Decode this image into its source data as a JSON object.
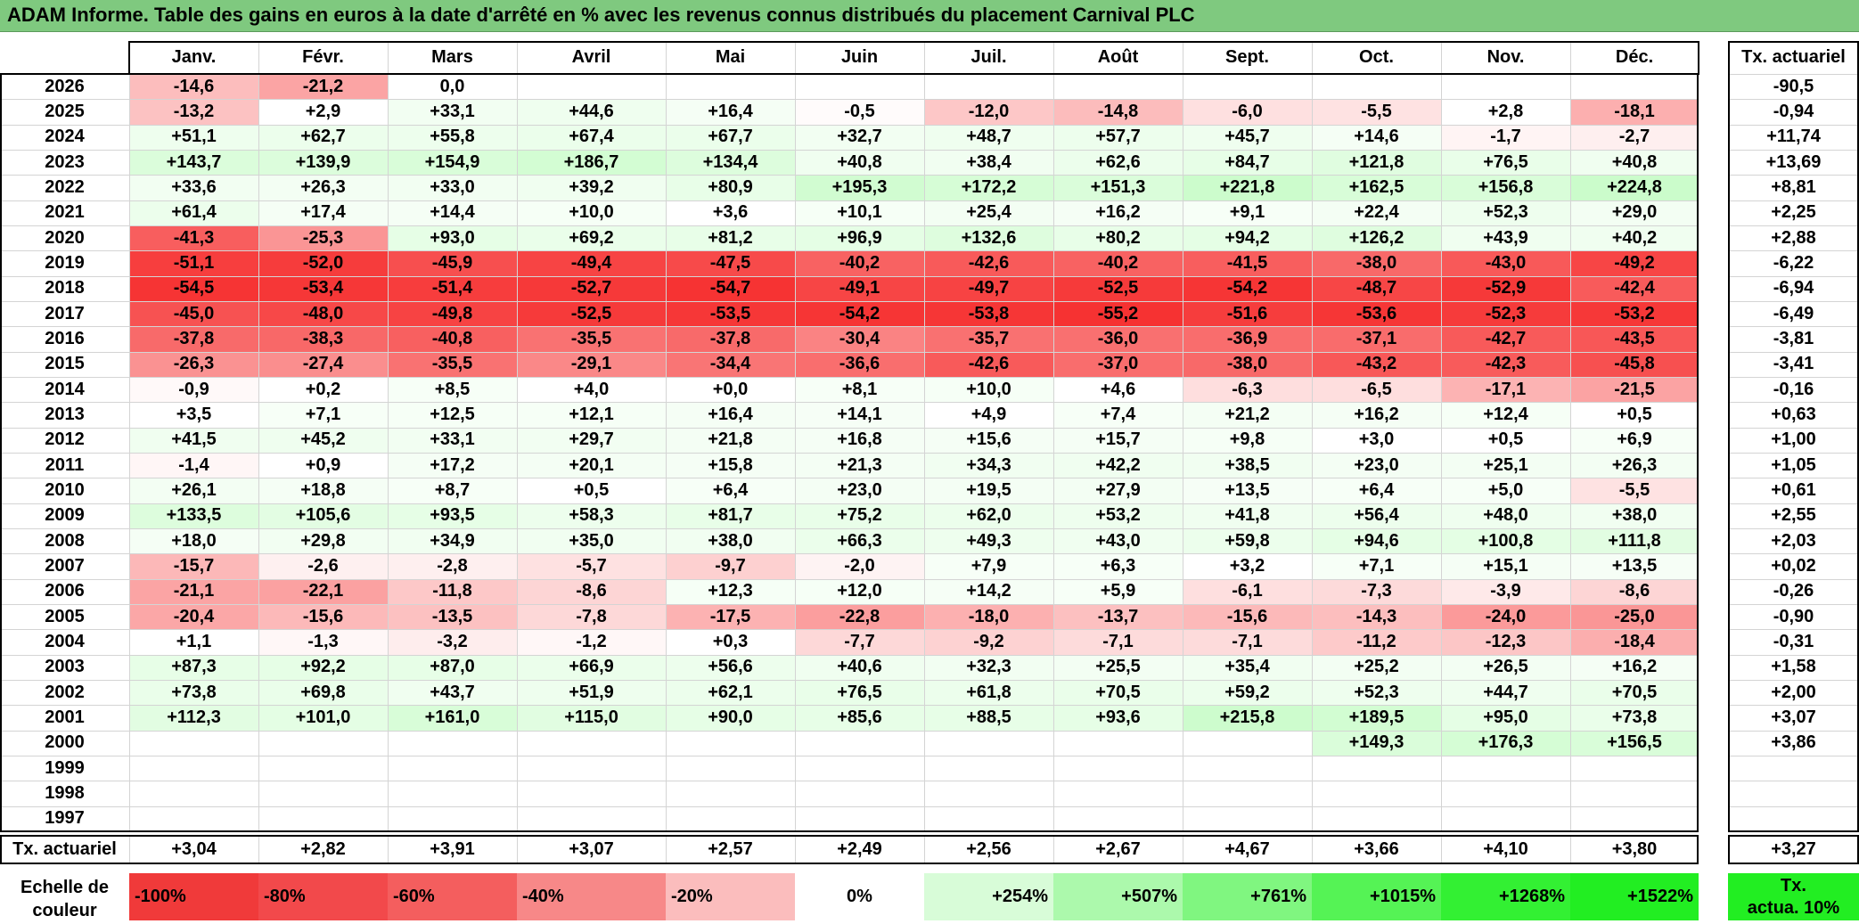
{
  "title": "ADAM Informe. Table des gains en euros à la date d'arrêté en % avec les revenus connus distribués du placement Carnival PLC",
  "months": [
    "Janv.",
    "Févr.",
    "Mars",
    "Avril",
    "Mai",
    "Juin",
    "Juil.",
    "Août",
    "Sept.",
    "Oct.",
    "Nov.",
    "Déc."
  ],
  "rate_header": "Tx. actuariel",
  "rows": [
    {
      "year": "2026",
      "values": [
        "-14,6",
        "-21,2",
        "0,0",
        "",
        "",
        "",
        "",
        "",
        "",
        "",
        "",
        ""
      ],
      "rate": "-90,5"
    },
    {
      "year": "2025",
      "values": [
        "-13,2",
        "+2,9",
        "+33,1",
        "+44,6",
        "+16,4",
        "-0,5",
        "-12,0",
        "-14,8",
        "-6,0",
        "-5,5",
        "+2,8",
        "-18,1"
      ],
      "rate": "-0,94"
    },
    {
      "year": "2024",
      "values": [
        "+51,1",
        "+62,7",
        "+55,8",
        "+67,4",
        "+67,7",
        "+32,7",
        "+48,7",
        "+57,7",
        "+45,7",
        "+14,6",
        "-1,7",
        "-2,7"
      ],
      "rate": "+11,74"
    },
    {
      "year": "2023",
      "values": [
        "+143,7",
        "+139,9",
        "+154,9",
        "+186,7",
        "+134,4",
        "+40,8",
        "+38,4",
        "+62,6",
        "+84,7",
        "+121,8",
        "+76,5",
        "+40,8"
      ],
      "rate": "+13,69"
    },
    {
      "year": "2022",
      "values": [
        "+33,6",
        "+26,3",
        "+33,0",
        "+39,2",
        "+80,9",
        "+195,3",
        "+172,2",
        "+151,3",
        "+221,8",
        "+162,5",
        "+156,8",
        "+224,8"
      ],
      "rate": "+8,81"
    },
    {
      "year": "2021",
      "values": [
        "+61,4",
        "+17,4",
        "+14,4",
        "+10,0",
        "+3,6",
        "+10,1",
        "+25,4",
        "+16,2",
        "+9,1",
        "+22,4",
        "+52,3",
        "+29,0"
      ],
      "rate": "+2,25"
    },
    {
      "year": "2020",
      "values": [
        "-41,3",
        "-25,3",
        "+93,0",
        "+69,2",
        "+81,2",
        "+96,9",
        "+132,6",
        "+80,2",
        "+94,2",
        "+126,2",
        "+43,9",
        "+40,2"
      ],
      "rate": "+2,88"
    },
    {
      "year": "2019",
      "values": [
        "-51,1",
        "-52,0",
        "-45,9",
        "-49,4",
        "-47,5",
        "-40,2",
        "-42,6",
        "-40,2",
        "-41,5",
        "-38,0",
        "-43,0",
        "-49,2"
      ],
      "rate": "-6,22"
    },
    {
      "year": "2018",
      "values": [
        "-54,5",
        "-53,4",
        "-51,4",
        "-52,7",
        "-54,7",
        "-49,1",
        "-49,7",
        "-52,5",
        "-54,2",
        "-48,7",
        "-52,9",
        "-42,4"
      ],
      "rate": "-6,94"
    },
    {
      "year": "2017",
      "values": [
        "-45,0",
        "-48,0",
        "-49,8",
        "-52,5",
        "-53,5",
        "-54,2",
        "-53,8",
        "-55,2",
        "-51,6",
        "-53,6",
        "-52,3",
        "-53,2"
      ],
      "rate": "-6,49"
    },
    {
      "year": "2016",
      "values": [
        "-37,8",
        "-38,3",
        "-40,8",
        "-35,5",
        "-37,8",
        "-30,4",
        "-35,7",
        "-36,0",
        "-36,9",
        "-37,1",
        "-42,7",
        "-43,5"
      ],
      "rate": "-3,81"
    },
    {
      "year": "2015",
      "values": [
        "-26,3",
        "-27,4",
        "-35,5",
        "-29,1",
        "-34,4",
        "-36,6",
        "-42,6",
        "-37,0",
        "-38,0",
        "-43,2",
        "-42,3",
        "-45,8"
      ],
      "rate": "-3,41"
    },
    {
      "year": "2014",
      "values": [
        "-0,9",
        "+0,2",
        "+8,5",
        "+4,0",
        "+0,0",
        "+8,1",
        "+10,0",
        "+4,6",
        "-6,3",
        "-6,5",
        "-17,1",
        "-21,5"
      ],
      "rate": "-0,16"
    },
    {
      "year": "2013",
      "values": [
        "+3,5",
        "+7,1",
        "+12,5",
        "+12,1",
        "+16,4",
        "+14,1",
        "+4,9",
        "+7,4",
        "+21,2",
        "+16,2",
        "+12,4",
        "+0,5"
      ],
      "rate": "+0,63"
    },
    {
      "year": "2012",
      "values": [
        "+41,5",
        "+45,2",
        "+33,1",
        "+29,7",
        "+21,8",
        "+16,8",
        "+15,6",
        "+15,7",
        "+9,8",
        "+3,0",
        "+0,5",
        "+6,9"
      ],
      "rate": "+1,00"
    },
    {
      "year": "2011",
      "values": [
        "-1,4",
        "+0,9",
        "+17,2",
        "+20,1",
        "+15,8",
        "+21,3",
        "+34,3",
        "+42,2",
        "+38,5",
        "+23,0",
        "+25,1",
        "+26,3"
      ],
      "rate": "+1,05"
    },
    {
      "year": "2010",
      "values": [
        "+26,1",
        "+18,8",
        "+8,7",
        "+0,5",
        "+6,4",
        "+23,0",
        "+19,5",
        "+27,9",
        "+13,5",
        "+6,4",
        "+5,0",
        "-5,5"
      ],
      "rate": "+0,61"
    },
    {
      "year": "2009",
      "values": [
        "+133,5",
        "+105,6",
        "+93,5",
        "+58,3",
        "+81,7",
        "+75,2",
        "+62,0",
        "+53,2",
        "+41,8",
        "+56,4",
        "+48,0",
        "+38,0"
      ],
      "rate": "+2,55"
    },
    {
      "year": "2008",
      "values": [
        "+18,0",
        "+29,8",
        "+34,9",
        "+35,0",
        "+38,0",
        "+66,3",
        "+49,3",
        "+43,0",
        "+59,8",
        "+94,6",
        "+100,8",
        "+111,8"
      ],
      "rate": "+2,03"
    },
    {
      "year": "2007",
      "values": [
        "-15,7",
        "-2,6",
        "-2,8",
        "-5,7",
        "-9,7",
        "-2,0",
        "+7,9",
        "+6,3",
        "+3,2",
        "+7,1",
        "+15,1",
        "+13,5"
      ],
      "rate": "+0,02"
    },
    {
      "year": "2006",
      "values": [
        "-21,1",
        "-22,1",
        "-11,8",
        "-8,6",
        "+12,3",
        "+12,0",
        "+14,2",
        "+5,9",
        "-6,1",
        "-7,3",
        "-3,9",
        "-8,6"
      ],
      "rate": "-0,26"
    },
    {
      "year": "2005",
      "values": [
        "-20,4",
        "-15,6",
        "-13,5",
        "-7,8",
        "-17,5",
        "-22,8",
        "-18,0",
        "-13,7",
        "-15,6",
        "-14,3",
        "-24,0",
        "-25,0"
      ],
      "rate": "-0,90"
    },
    {
      "year": "2004",
      "values": [
        "+1,1",
        "-1,3",
        "-3,2",
        "-1,2",
        "+0,3",
        "-7,7",
        "-9,2",
        "-7,1",
        "-7,1",
        "-11,2",
        "-12,3",
        "-18,4"
      ],
      "rate": "-0,31"
    },
    {
      "year": "2003",
      "values": [
        "+87,3",
        "+92,2",
        "+87,0",
        "+66,9",
        "+56,6",
        "+40,6",
        "+32,3",
        "+25,5",
        "+35,4",
        "+25,2",
        "+26,5",
        "+16,2"
      ],
      "rate": "+1,58"
    },
    {
      "year": "2002",
      "values": [
        "+73,8",
        "+69,8",
        "+43,7",
        "+51,9",
        "+62,1",
        "+76,5",
        "+61,8",
        "+70,5",
        "+59,2",
        "+52,3",
        "+44,7",
        "+70,5"
      ],
      "rate": "+2,00"
    },
    {
      "year": "2001",
      "values": [
        "+112,3",
        "+101,0",
        "+161,0",
        "+115,0",
        "+90,0",
        "+85,6",
        "+88,5",
        "+93,6",
        "+215,8",
        "+189,5",
        "+95,0",
        "+73,8"
      ],
      "rate": "+3,07"
    },
    {
      "year": "2000",
      "values": [
        "",
        "",
        "",
        "",
        "",
        "",
        "",
        "",
        "",
        "+149,3",
        "+176,3",
        "+156,5"
      ],
      "rate": "+3,86"
    },
    {
      "year": "1999",
      "values": [
        "",
        "",
        "",
        "",
        "",
        "",
        "",
        "",
        "",
        "",
        "",
        ""
      ],
      "rate": ""
    },
    {
      "year": "1998",
      "values": [
        "",
        "",
        "",
        "",
        "",
        "",
        "",
        "",
        "",
        "",
        "",
        ""
      ],
      "rate": ""
    },
    {
      "year": "1997",
      "values": [
        "",
        "",
        "",
        "",
        "",
        "",
        "",
        "",
        "",
        "",
        "",
        ""
      ],
      "rate": ""
    }
  ],
  "summary": {
    "label": "Tx. actuariel",
    "values": [
      "+3,04",
      "+2,82",
      "+3,91",
      "+3,07",
      "+2,57",
      "+2,49",
      "+2,56",
      "+2,67",
      "+4,67",
      "+3,66",
      "+4,10",
      "+3,80"
    ],
    "rate": "+3,27"
  },
  "legend": {
    "label_line1": "Echelle de",
    "label_line2": "couleur",
    "items": [
      {
        "text": "-100%",
        "color": "#f03a3a",
        "align": "left"
      },
      {
        "text": "-80%",
        "color": "#f2494b",
        "align": "left"
      },
      {
        "text": "-60%",
        "color": "#f45e5e",
        "align": "left"
      },
      {
        "text": "-40%",
        "color": "#f78888",
        "align": "left"
      },
      {
        "text": "-20%",
        "color": "#fbbdbd",
        "align": "left"
      },
      {
        "text": "0%",
        "color": "#ffffff",
        "align": "center"
      },
      {
        "text": "+254%",
        "color": "#d8fcd8",
        "align": "right"
      },
      {
        "text": "+507%",
        "color": "#acf9ac",
        "align": "right"
      },
      {
        "text": "+761%",
        "color": "#80f680",
        "align": "right"
      },
      {
        "text": "+1015%",
        "color": "#55f355",
        "align": "right"
      },
      {
        "text": "+1268%",
        "color": "#33f033",
        "align": "right"
      },
      {
        "text": "+1522%",
        "color": "#22ee22",
        "align": "right"
      }
    ],
    "rate_line1": "Tx.",
    "rate_line2": "actua. 10%",
    "rate_color": "#22ee22"
  }
}
